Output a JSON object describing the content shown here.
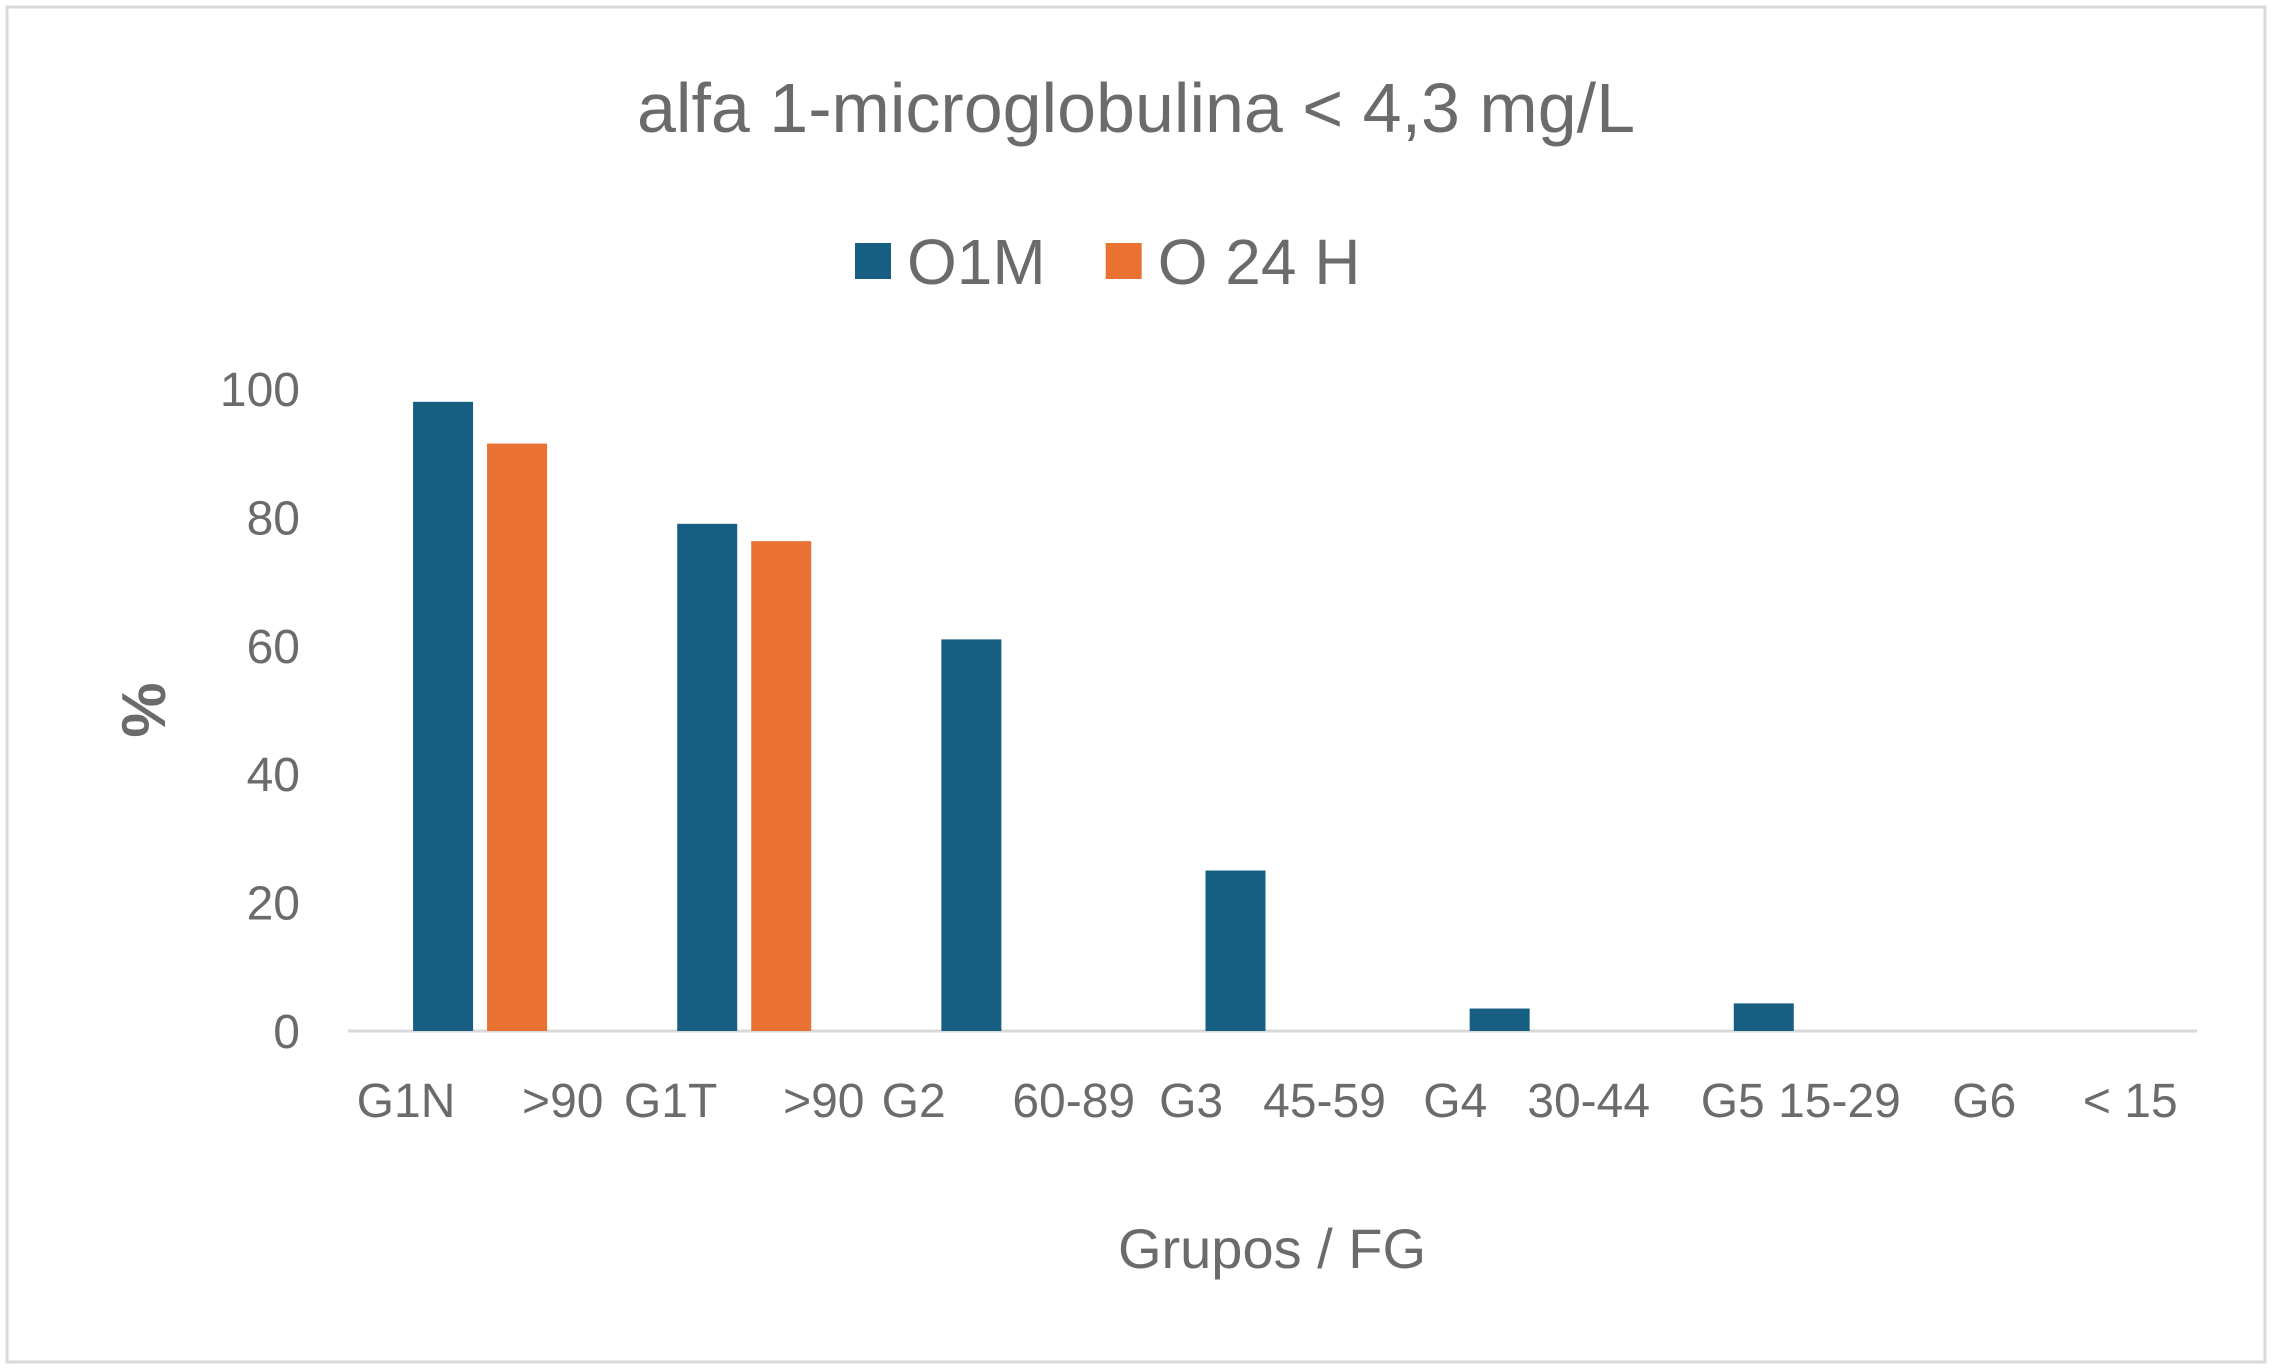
{
  "chart_data": {
    "type": "bar",
    "title": "alfa 1-microglobulina < 4,3 mg/L",
    "xlabel": "Grupos / FG",
    "ylabel": "%",
    "ylim": [
      0,
      100
    ],
    "yticks": [
      0,
      20,
      40,
      60,
      80,
      100
    ],
    "grid": false,
    "legend_placement": "top",
    "categories": [
      "G1N     >90",
      "G1T     >90",
      "G2     60-89",
      "G3   45-59",
      "G4   30-44",
      "G5 15-29",
      "G6     < 15"
    ],
    "series": [
      {
        "name": "O1M",
        "color": "#175F82",
        "values": [
          98,
          79,
          61,
          25,
          3.5,
          4.3,
          null
        ]
      },
      {
        "name": "O 24 H",
        "color": "#E97132",
        "values": [
          91.5,
          76.3,
          null,
          null,
          null,
          null,
          null
        ]
      }
    ]
  }
}
